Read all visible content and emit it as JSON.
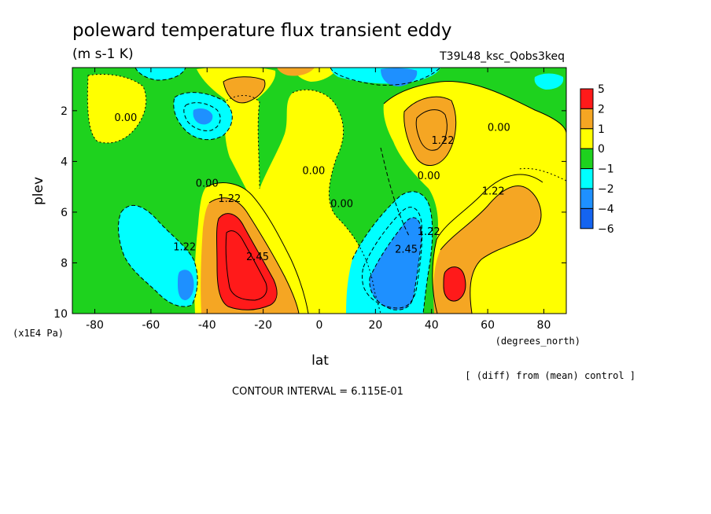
{
  "chart_data": {
    "type": "heatmap",
    "title": "poleward temperature flux transient eddy",
    "units": "(m s-1 K)",
    "run_label": "T39L48_ksc_Qobs3keq",
    "xlabel": "lat",
    "x_unit": "(degrees_north)",
    "ylabel": "plev",
    "y_unit": "(x1E4 Pa)",
    "xlim": [
      -88,
      88
    ],
    "ylim": [
      10,
      0.3
    ],
    "x_ticks": [
      -80,
      -60,
      -40,
      -20,
      0,
      20,
      40,
      60,
      80
    ],
    "x_tick_labels": [
      "-80",
      "-60",
      "-40",
      "-20",
      "0",
      "20",
      "40",
      "60",
      "80"
    ],
    "y_ticks": [
      2,
      4,
      6,
      8,
      10
    ],
    "y_tick_labels": [
      "2",
      "4",
      "6",
      "8",
      "10"
    ],
    "legend": {
      "placement": "right",
      "levels": [
        "5",
        "2",
        "1",
        "0",
        "−1",
        "−2",
        "−4",
        "−6"
      ],
      "colors": [
        "#ff1a1a",
        "#f5a623",
        "#ffff00",
        "#1ed21e",
        "#00ffff",
        "#1e90ff",
        "#1464f0"
      ]
    },
    "contour_labels": [
      {
        "text": "0.00",
        "lat": -69,
        "plev": 2.4
      },
      {
        "text": "0.00",
        "lat": -40,
        "plev": 5.0
      },
      {
        "text": "1.22",
        "lat": -32,
        "plev": 5.6
      },
      {
        "text": "1.22",
        "lat": -48,
        "plev": 7.5
      },
      {
        "text": "2.45",
        "lat": -22,
        "plev": 7.9
      },
      {
        "text": "0.00",
        "lat": -2,
        "plev": 4.5
      },
      {
        "text": "0.00",
        "lat": 8,
        "plev": 5.8
      },
      {
        "text": "0.00",
        "lat": 64,
        "plev": 2.8
      },
      {
        "text": "1.22",
        "lat": 44,
        "plev": 3.3
      },
      {
        "text": "0.00",
        "lat": 39,
        "plev": 4.7
      },
      {
        "text": "1.22",
        "lat": 62,
        "plev": 5.3
      },
      {
        "text": "1.22",
        "lat": 39,
        "plev": 6.9
      },
      {
        "text": "2.45",
        "lat": 31,
        "plev": 7.6
      }
    ],
    "grid": false
  },
  "footer": {
    "contour_interval": "CONTOUR INTERVAL = 6.115E-01",
    "diff_note": "[ (diff) from (mean) control ]"
  }
}
